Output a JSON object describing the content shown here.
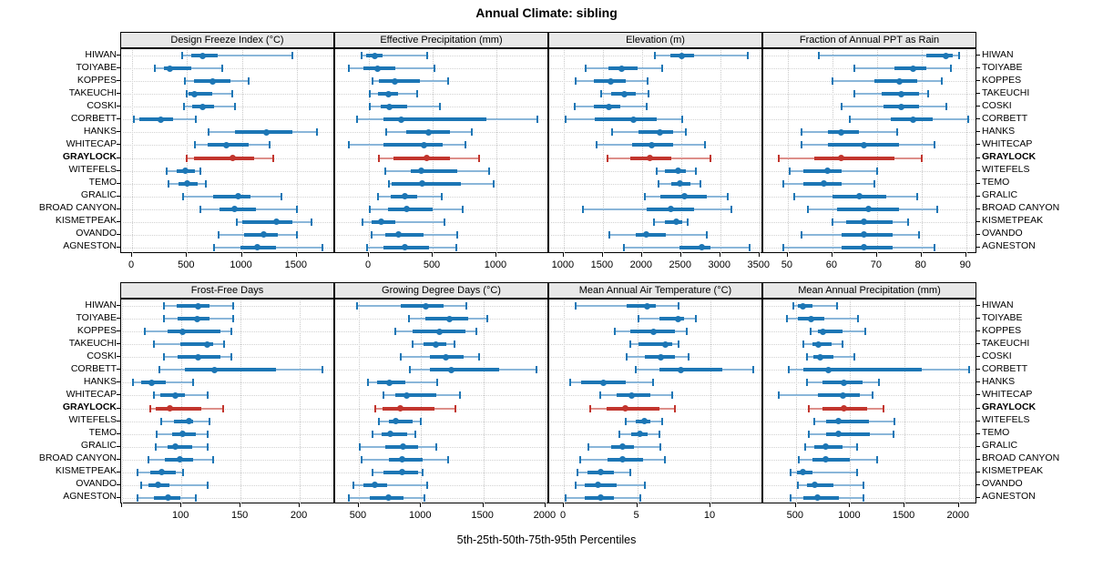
{
  "title": "Annual Climate: sibling",
  "caption": "5th-25th-50th-75th-95th Percentiles",
  "sites": [
    "HIWAN",
    "TOIYABE",
    "KOPPES",
    "TAKEUCHI",
    "COSKI",
    "CORBETT",
    "HANKS",
    "WHITECAP",
    "GRAYLOCK",
    "WITEFELS",
    "TEMO",
    "GRALIC",
    "BROAD CANYON",
    "KISMETPEAK",
    "OVANDO",
    "AGNESTON"
  ],
  "highlight_site": "GRAYLOCK",
  "percentile_levels": [
    5,
    25,
    50,
    75,
    95
  ],
  "colors": {
    "series": "#1c76b5",
    "series_light": "#8ab6d9",
    "highlight": "#c2352d",
    "highlight_light": "#dd8f8a",
    "strip_bg": "#e8e8e8",
    "grid": "#c9c9c9"
  },
  "chart_data": [
    {
      "type": "scatter",
      "subtype": "percentile-dot-whisker",
      "title": "Design Freeze Index (°C)",
      "xlim": [
        -100,
        1850
      ],
      "tick_values": [
        0,
        500,
        1000,
        1500
      ],
      "tick_labels": [
        "0",
        "500",
        "1000",
        "1500"
      ],
      "series": [
        [
          455,
          540,
          640,
          780,
          1460
        ],
        [
          210,
          290,
          340,
          540,
          825
        ],
        [
          480,
          565,
          735,
          895,
          1060
        ],
        [
          495,
          515,
          570,
          730,
          915
        ],
        [
          470,
          550,
          640,
          745,
          935
        ],
        [
          20,
          70,
          265,
          375,
          580
        ],
        [
          700,
          935,
          1225,
          1460,
          1680
        ],
        [
          575,
          690,
          855,
          1060,
          1250
        ],
        [
          495,
          565,
          920,
          1115,
          1285
        ],
        [
          315,
          405,
          485,
          575,
          620
        ],
        [
          330,
          425,
          500,
          595,
          675
        ],
        [
          465,
          735,
          965,
          1075,
          1360
        ],
        [
          625,
          800,
          935,
          1130,
          1500
        ],
        [
          955,
          1000,
          1315,
          1460,
          1635
        ],
        [
          790,
          1020,
          1195,
          1325,
          1500
        ],
        [
          745,
          985,
          1140,
          1310,
          1730
        ]
      ]
    },
    {
      "type": "scatter",
      "subtype": "percentile-dot-whisker",
      "title": "Effective Precipitation (mm)",
      "xlim": [
        -265,
        1415
      ],
      "tick_values": [
        0,
        500,
        1000
      ],
      "tick_labels": [
        "0",
        "500",
        "1000"
      ],
      "series": [
        [
          -55,
          -25,
          45,
          105,
          455
        ],
        [
          -155,
          -40,
          70,
          205,
          515
        ],
        [
          30,
          80,
          200,
          400,
          620
        ],
        [
          5,
          70,
          150,
          225,
          380
        ],
        [
          5,
          90,
          160,
          300,
          555
        ],
        [
          -95,
          115,
          255,
          925,
          1325
        ],
        [
          135,
          290,
          470,
          635,
          810
        ],
        [
          -155,
          115,
          430,
          580,
          755
        ],
        [
          75,
          190,
          455,
          635,
          865
        ],
        [
          125,
          325,
          410,
          695,
          940
        ],
        [
          160,
          175,
          420,
          720,
          980
        ],
        [
          70,
          170,
          280,
          375,
          570
        ],
        [
          5,
          150,
          295,
          500,
          735
        ],
        [
          -50,
          20,
          95,
          205,
          590
        ],
        [
          20,
          130,
          235,
          425,
          690
        ],
        [
          -15,
          115,
          280,
          475,
          685
        ]
      ]
    },
    {
      "type": "scatter",
      "subtype": "percentile-dot-whisker",
      "title": "Elevation (m)",
      "xlim": [
        815,
        3550
      ],
      "tick_values": [
        1000,
        1500,
        2000,
        2500,
        3000,
        3500
      ],
      "tick_labels": [
        "1000",
        "1500",
        "2000",
        "2500",
        "3000",
        "3500"
      ],
      "series": [
        [
          2160,
          2360,
          2510,
          2670,
          3350
        ],
        [
          1280,
          1570,
          1735,
          1940,
          2260
        ],
        [
          1155,
          1390,
          1600,
          1790,
          2075
        ],
        [
          1480,
          1610,
          1775,
          1920,
          2085
        ],
        [
          1145,
          1390,
          1580,
          1725,
          2065
        ],
        [
          1030,
          1400,
          1890,
          2190,
          2510
        ],
        [
          1620,
          1960,
          2230,
          2400,
          2560
        ],
        [
          1420,
          1870,
          2120,
          2400,
          2810
        ],
        [
          1560,
          1850,
          2100,
          2370,
          2870
        ],
        [
          2190,
          2290,
          2460,
          2560,
          2690
        ],
        [
          2210,
          2370,
          2480,
          2620,
          2750
        ],
        [
          2040,
          2230,
          2540,
          2830,
          3100
        ],
        [
          1250,
          2060,
          2370,
          2670,
          3140
        ],
        [
          2150,
          2290,
          2440,
          2520,
          2580
        ],
        [
          1580,
          1920,
          2060,
          2310,
          2830
        ],
        [
          1770,
          2480,
          2770,
          2880,
          3370
        ]
      ]
    },
    {
      "type": "scatter",
      "subtype": "percentile-dot-whisker",
      "title": "Fraction of Annual PPT as Rain",
      "xlim": [
        44.5,
        92.5
      ],
      "tick_values": [
        50,
        60,
        70,
        80,
        90
      ],
      "tick_labels": [
        "50",
        "60",
        "70",
        "80",
        "90"
      ],
      "series": [
        [
          57,
          81,
          85.5,
          87,
          88.5
        ],
        [
          65,
          74,
          78,
          81,
          86.5
        ],
        [
          60,
          69.5,
          75,
          79,
          84.5
        ],
        [
          65,
          71,
          75.5,
          79.5,
          81.5
        ],
        [
          62,
          71.5,
          75.5,
          79.5,
          85.5
        ],
        [
          64,
          73,
          78,
          82.5,
          90.5
        ],
        [
          53,
          59,
          62,
          66,
          74.5
        ],
        [
          53,
          59,
          67,
          75,
          83
        ],
        [
          48,
          56,
          62,
          74,
          80
        ],
        [
          50.5,
          53.5,
          59,
          62,
          70
        ],
        [
          49,
          53.5,
          58,
          62,
          69.5
        ],
        [
          51.5,
          60,
          66,
          72,
          79
        ],
        [
          54.5,
          61,
          68,
          75,
          83.5
        ],
        [
          60,
          63,
          67,
          73.5,
          77
        ],
        [
          53,
          62,
          67,
          73.5,
          79.5
        ],
        [
          49,
          62,
          67,
          73.5,
          83
        ]
      ]
    },
    {
      "type": "scatter",
      "subtype": "percentile-dot-whisker",
      "title": "Frost-Free Days",
      "xlim": [
        49,
        230
      ],
      "tick_values": [
        50,
        100,
        150,
        200
      ],
      "tick_labels": [
        "",
        "100",
        "150",
        "200"
      ],
      "series": [
        [
          85,
          96,
          114,
          124,
          144
        ],
        [
          85,
          97,
          113,
          124,
          144
        ],
        [
          69,
          88,
          101,
          133,
          142
        ],
        [
          77,
          99,
          122,
          127,
          136
        ],
        [
          85,
          97,
          114,
          133,
          142
        ],
        [
          81,
          103,
          128,
          180,
          219
        ],
        [
          59,
          66,
          75,
          87,
          110
        ],
        [
          77,
          82,
          95,
          103,
          122
        ],
        [
          74,
          78,
          90,
          117,
          135
        ],
        [
          83,
          94,
          106,
          110,
          124
        ],
        [
          79,
          92,
          101,
          112,
          122
        ],
        [
          78,
          88,
          95,
          109,
          122
        ],
        [
          72,
          86,
          99,
          110,
          127
        ],
        [
          63,
          74,
          83,
          95,
          101
        ],
        [
          66,
          72,
          80,
          90,
          122
        ],
        [
          63,
          77,
          89,
          99,
          112
        ]
      ]
    },
    {
      "type": "scatter",
      "subtype": "percentile-dot-whisker",
      "title": "Growing Degree Days (°C)",
      "xlim": [
        310,
        2030
      ],
      "tick_values": [
        500,
        1000,
        1500,
        2000
      ],
      "tick_labels": [
        "500",
        "1000",
        "1500",
        "2000"
      ],
      "series": [
        [
          485,
          840,
          1035,
          1180,
          1365
        ],
        [
          905,
          1035,
          1230,
          1380,
          1535
        ],
        [
          790,
          935,
          1145,
          1355,
          1445
        ],
        [
          930,
          1020,
          1120,
          1205,
          1270
        ],
        [
          840,
          1070,
          1200,
          1340,
          1470
        ],
        [
          910,
          1070,
          1240,
          1625,
          1930
        ],
        [
          575,
          650,
          745,
          875,
          1130
        ],
        [
          700,
          790,
          885,
          1120,
          1310
        ],
        [
          630,
          690,
          830,
          1110,
          1275
        ],
        [
          660,
          740,
          795,
          935,
          1000
        ],
        [
          610,
          680,
          755,
          885,
          955
        ],
        [
          505,
          715,
          855,
          975,
          1125
        ],
        [
          525,
          740,
          850,
          1010,
          1215
        ],
        [
          610,
          695,
          850,
          975,
          1010
        ],
        [
          460,
          540,
          630,
          725,
          1050
        ],
        [
          420,
          590,
          740,
          860,
          1025
        ]
      ]
    },
    {
      "type": "scatter",
      "subtype": "percentile-dot-whisker",
      "title": "Mean Annual Air Temperature (°C)",
      "xlim": [
        -1,
        13.6
      ],
      "tick_values": [
        0,
        5,
        10
      ],
      "tick_labels": [
        "0",
        "5",
        "10"
      ],
      "series": [
        [
          0.8,
          4.3,
          5.7,
          6.3,
          7.8
        ],
        [
          5.1,
          6.5,
          7.8,
          8.2,
          9.0
        ],
        [
          3.5,
          4.5,
          6.1,
          7.6,
          8.4
        ],
        [
          4.5,
          5.1,
          6.9,
          7.4,
          7.8
        ],
        [
          4.3,
          5.5,
          6.6,
          7.6,
          8.5
        ],
        [
          4.9,
          6.5,
          8.0,
          10.8,
          12.9
        ],
        [
          0.4,
          1.2,
          2.7,
          4.2,
          6.1
        ],
        [
          2.5,
          3.6,
          4.6,
          5.9,
          7.4
        ],
        [
          1.8,
          2.9,
          4.2,
          6.5,
          7.6
        ],
        [
          4.2,
          4.9,
          5.5,
          5.9,
          6.7
        ],
        [
          3.8,
          4.6,
          5.2,
          5.7,
          6.5
        ],
        [
          1.7,
          3.2,
          4.0,
          4.8,
          6.6
        ],
        [
          1.1,
          3.0,
          4.0,
          5.4,
          6.9
        ],
        [
          0.9,
          1.6,
          2.5,
          3.4,
          4.5
        ],
        [
          0.8,
          1.4,
          2.3,
          3.6,
          5.5
        ],
        [
          0.1,
          1.4,
          2.5,
          3.4,
          5.2
        ]
      ]
    },
    {
      "type": "scatter",
      "subtype": "percentile-dot-whisker",
      "title": "Mean Annual Precipitation (mm)",
      "xlim": [
        200,
        2170
      ],
      "tick_values": [
        500,
        1000,
        1500,
        2000
      ],
      "tick_labels": [
        "500",
        "1000",
        "1500",
        "2000"
      ],
      "series": [
        [
          480,
          517,
          565,
          650,
          875
        ],
        [
          415,
          520,
          640,
          760,
          1070
        ],
        [
          635,
          705,
          745,
          930,
          1140
        ],
        [
          565,
          650,
          705,
          830,
          930
        ],
        [
          600,
          665,
          725,
          845,
          1040
        ],
        [
          435,
          565,
          800,
          1660,
          2095
        ],
        [
          600,
          745,
          945,
          1115,
          1265
        ],
        [
          340,
          705,
          930,
          1085,
          1210
        ],
        [
          620,
          745,
          940,
          1155,
          1310
        ],
        [
          670,
          775,
          890,
          1170,
          1410
        ],
        [
          620,
          780,
          895,
          1185,
          1400
        ],
        [
          585,
          670,
          775,
          930,
          1060
        ],
        [
          530,
          650,
          775,
          1000,
          1245
        ],
        [
          450,
          510,
          565,
          650,
          1060
        ],
        [
          515,
          600,
          675,
          845,
          1120
        ],
        [
          450,
          565,
          695,
          900,
          1125
        ]
      ]
    }
  ]
}
